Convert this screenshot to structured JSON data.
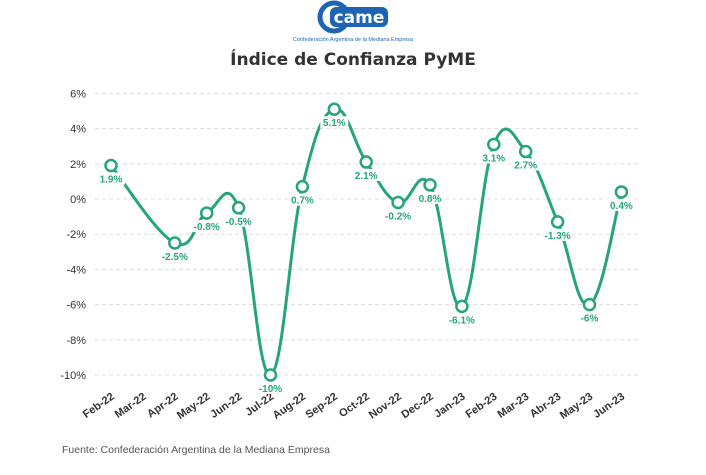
{
  "logo": {
    "wordmark": "came",
    "tagline": "Confederación Argentina de la Mediana Empresa"
  },
  "title": "Índice de Confianza PyME",
  "source": "Fuente: Confederación Argentina de la Mediana Empresa",
  "colors": {
    "line": "#27a57a",
    "logo": "#1f63b3",
    "grid": "#dddddd",
    "text": "#333333"
  },
  "chart_data": {
    "type": "line",
    "title": "Índice de Confianza PyME",
    "xlabel": "",
    "ylabel": "",
    "y_tick_labels": [
      "6%",
      "4%",
      "2%",
      "0%",
      "-2%",
      "-4%",
      "-6%",
      "-8%",
      "-10%"
    ],
    "y_ticks": [
      6,
      4,
      2,
      0,
      -2,
      -4,
      -6,
      -8,
      -10
    ],
    "ylim": [
      -10.5,
      6
    ],
    "grid": "horizontal dashed",
    "categories": [
      "Feb-22",
      "Mar-22",
      "Apr-22",
      "May-22",
      "Jun-22",
      "Jul-22",
      "Aug-22",
      "Sep-22",
      "Oct-22",
      "Nov-22",
      "Dec-22",
      "Jan-23",
      "Feb-23",
      "Mar-23",
      "Abr-23",
      "May-23",
      "Jun-23"
    ],
    "points": [
      {
        "x": "Feb-22",
        "y": 1.9,
        "label": "1.9%"
      },
      {
        "x": "Apr-22",
        "y": -2.5,
        "label": "-2.5%"
      },
      {
        "x": "May-22",
        "y": -0.8,
        "label": "-0.8%"
      },
      {
        "x": "Jun-22",
        "y": -0.5,
        "label": "-0.5%"
      },
      {
        "x": "Jul-22",
        "y": -10,
        "label": "-10%"
      },
      {
        "x": "Aug-22",
        "y": 0.7,
        "label": "0.7%"
      },
      {
        "x": "Sep-22",
        "y": 5.1,
        "label": "5.1%"
      },
      {
        "x": "Oct-22",
        "y": 2.1,
        "label": "2.1%"
      },
      {
        "x": "Nov-22",
        "y": -0.2,
        "label": "-0.2%"
      },
      {
        "x": "Dec-22",
        "y": 0.8,
        "label": "0.8%"
      },
      {
        "x": "Jan-23",
        "y": -6.1,
        "label": "-6.1%"
      },
      {
        "x": "Feb-23",
        "y": 3.1,
        "label": "3.1%"
      },
      {
        "x": "Mar-23",
        "y": 2.7,
        "label": "2.7%"
      },
      {
        "x": "Abr-23",
        "y": -1.3,
        "label": "-1.3%"
      },
      {
        "x": "May-23",
        "y": -6,
        "label": "-6%"
      },
      {
        "x": "Jun-23",
        "y": 0.4,
        "label": "0.4%"
      }
    ]
  }
}
